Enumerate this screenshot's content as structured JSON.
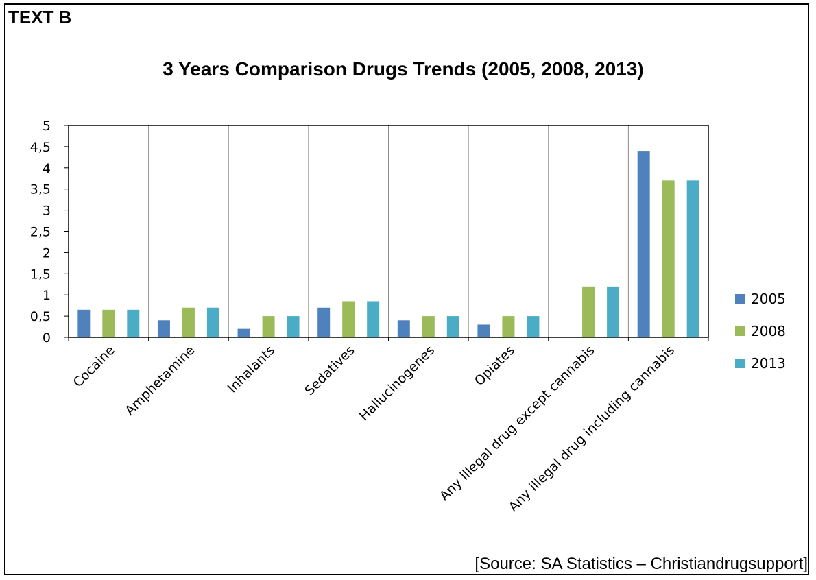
{
  "text_label": "TEXT B",
  "source": "[Source: SA Statistics – Christiandrugsupport]",
  "chart_data": {
    "type": "bar",
    "title": "3 Years Comparison Drugs Trends (2005, 2008, 2013)",
    "xlabel": "",
    "ylabel": "",
    "ylim": [
      0,
      5
    ],
    "yticks": [
      "0",
      "0,5",
      "1",
      "1,5",
      "2",
      "2,5",
      "3",
      "3,5",
      "4",
      "4,5",
      "5"
    ],
    "grid": "vertical",
    "legend_position": "right",
    "categories": [
      "Cocaine",
      "Amphetamine",
      "Inhalants",
      "Sedatives",
      "Hallucinogenes",
      "Opiates",
      "Any illegal drug except cannabis",
      "Any illegal drug including cannabis"
    ],
    "series": [
      {
        "name": "2005",
        "color": "#4F81BD",
        "values": [
          0.65,
          0.4,
          0.2,
          0.7,
          0.4,
          0.3,
          0,
          4.4
        ]
      },
      {
        "name": "2008",
        "color": "#9BBB59",
        "values": [
          0.65,
          0.7,
          0.5,
          0.85,
          0.5,
          0.5,
          1.2,
          3.7
        ]
      },
      {
        "name": "2013",
        "color": "#4BACC6",
        "values": [
          0.65,
          0.7,
          0.5,
          0.85,
          0.5,
          0.5,
          1.2,
          3.7
        ]
      }
    ]
  }
}
